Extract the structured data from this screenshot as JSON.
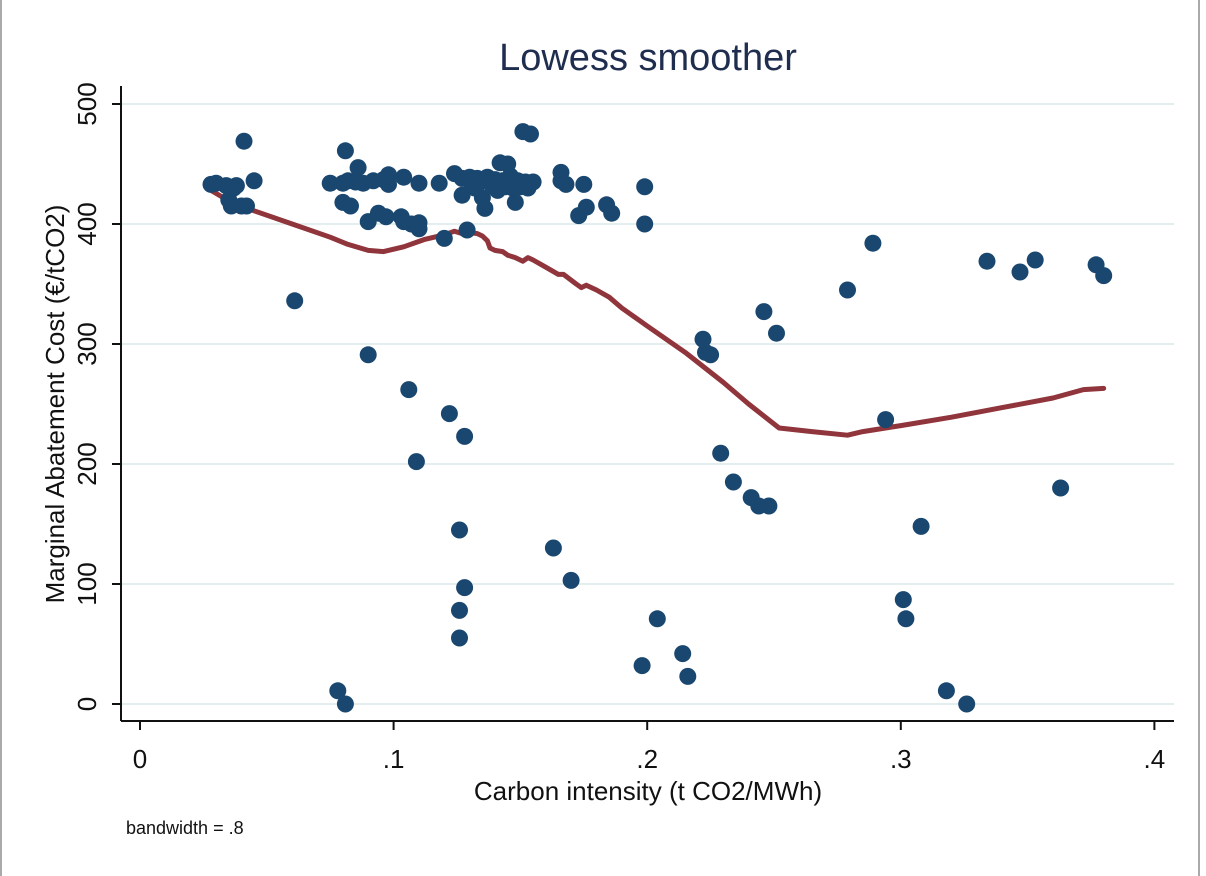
{
  "chart_data": {
    "type": "scatter",
    "title": "Lowess smoother",
    "xlabel": "Carbon intensity (t CO2/MWh)",
    "ylabel": "Marginal Abatement Cost (€/tCO2)",
    "note": "bandwidth = .8",
    "xlim": [
      -0.007,
      0.405
    ],
    "ylim": [
      -15,
      515
    ],
    "xticks": [
      0,
      0.1,
      0.2,
      0.3,
      0.4
    ],
    "xtick_labels": [
      "0",
      ".1",
      ".2",
      ".3",
      ".4"
    ],
    "yticks": [
      0,
      100,
      200,
      300,
      400,
      500
    ],
    "ytick_labels": [
      "0",
      "100",
      "200",
      "300",
      "400",
      "500"
    ],
    "grid": true,
    "colors": {
      "points": "#1a476f",
      "lowess": "#90353b",
      "title": "#1f2d4f",
      "grid": "#e4eeee"
    },
    "series": [
      {
        "name": "Marginal Abatement Cost",
        "kind": "scatter",
        "points": [
          [
            0.028,
            433
          ],
          [
            0.03,
            434
          ],
          [
            0.034,
            432
          ],
          [
            0.035,
            420
          ],
          [
            0.036,
            415
          ],
          [
            0.037,
            430
          ],
          [
            0.038,
            432
          ],
          [
            0.04,
            415
          ],
          [
            0.041,
            469
          ],
          [
            0.042,
            415
          ],
          [
            0.045,
            436
          ],
          [
            0.061,
            336
          ],
          [
            0.075,
            434
          ],
          [
            0.078,
            11
          ],
          [
            0.08,
            434
          ],
          [
            0.08,
            418
          ],
          [
            0.081,
            461
          ],
          [
            0.081,
            0
          ],
          [
            0.082,
            436
          ],
          [
            0.083,
            415
          ],
          [
            0.085,
            435
          ],
          [
            0.086,
            447
          ],
          [
            0.088,
            434
          ],
          [
            0.09,
            291
          ],
          [
            0.09,
            402
          ],
          [
            0.092,
            436
          ],
          [
            0.094,
            409
          ],
          [
            0.096,
            437
          ],
          [
            0.097,
            406
          ],
          [
            0.098,
            433
          ],
          [
            0.098,
            441
          ],
          [
            0.103,
            406
          ],
          [
            0.104,
            439
          ],
          [
            0.104,
            402
          ],
          [
            0.106,
            262
          ],
          [
            0.107,
            400
          ],
          [
            0.109,
            202
          ],
          [
            0.11,
            434
          ],
          [
            0.11,
            401
          ],
          [
            0.11,
            396
          ],
          [
            0.118,
            434
          ],
          [
            0.12,
            388
          ],
          [
            0.122,
            242
          ],
          [
            0.124,
            442
          ],
          [
            0.126,
            78
          ],
          [
            0.126,
            145
          ],
          [
            0.126,
            55
          ],
          [
            0.127,
            438
          ],
          [
            0.127,
            424
          ],
          [
            0.128,
            223
          ],
          [
            0.128,
            97
          ],
          [
            0.129,
            395
          ],
          [
            0.13,
            439
          ],
          [
            0.131,
            432
          ],
          [
            0.132,
            430
          ],
          [
            0.133,
            438
          ],
          [
            0.134,
            435
          ],
          [
            0.135,
            422
          ],
          [
            0.136,
            413
          ],
          [
            0.137,
            439
          ],
          [
            0.138,
            437
          ],
          [
            0.139,
            432
          ],
          [
            0.14,
            437
          ],
          [
            0.141,
            428
          ],
          [
            0.142,
            451
          ],
          [
            0.143,
            436
          ],
          [
            0.144,
            431
          ],
          [
            0.145,
            450
          ],
          [
            0.146,
            440
          ],
          [
            0.147,
            430
          ],
          [
            0.148,
            418
          ],
          [
            0.149,
            436
          ],
          [
            0.15,
            431
          ],
          [
            0.151,
            477
          ],
          [
            0.152,
            435
          ],
          [
            0.153,
            430
          ],
          [
            0.154,
            475
          ],
          [
            0.155,
            435
          ],
          [
            0.163,
            130
          ],
          [
            0.166,
            443
          ],
          [
            0.166,
            436
          ],
          [
            0.168,
            433
          ],
          [
            0.17,
            103
          ],
          [
            0.173,
            407
          ],
          [
            0.175,
            433
          ],
          [
            0.176,
            414
          ],
          [
            0.184,
            416
          ],
          [
            0.186,
            409
          ],
          [
            0.198,
            32
          ],
          [
            0.199,
            431
          ],
          [
            0.199,
            400
          ],
          [
            0.204,
            71
          ],
          [
            0.214,
            42
          ],
          [
            0.216,
            23
          ],
          [
            0.222,
            304
          ],
          [
            0.223,
            293
          ],
          [
            0.225,
            291
          ],
          [
            0.229,
            209
          ],
          [
            0.234,
            185
          ],
          [
            0.241,
            172
          ],
          [
            0.244,
            165
          ],
          [
            0.246,
            327
          ],
          [
            0.248,
            165
          ],
          [
            0.251,
            309
          ],
          [
            0.279,
            345
          ],
          [
            0.289,
            384
          ],
          [
            0.294,
            237
          ],
          [
            0.301,
            87
          ],
          [
            0.302,
            71
          ],
          [
            0.308,
            148
          ],
          [
            0.318,
            11
          ],
          [
            0.326,
            0
          ],
          [
            0.334,
            369
          ],
          [
            0.347,
            360
          ],
          [
            0.353,
            370
          ],
          [
            0.363,
            180
          ],
          [
            0.377,
            366
          ],
          [
            0.38,
            357
          ]
        ]
      },
      {
        "name": "Lowess smoother",
        "kind": "line",
        "points": [
          [
            0.028,
            428
          ],
          [
            0.036,
            418
          ],
          [
            0.045,
            411
          ],
          [
            0.06,
            400
          ],
          [
            0.075,
            389
          ],
          [
            0.082,
            383
          ],
          [
            0.09,
            378
          ],
          [
            0.096,
            377
          ],
          [
            0.104,
            381
          ],
          [
            0.112,
            387
          ],
          [
            0.12,
            391
          ],
          [
            0.124,
            394
          ],
          [
            0.127,
            392
          ],
          [
            0.13,
            393
          ],
          [
            0.133,
            392
          ],
          [
            0.135,
            390
          ],
          [
            0.137,
            386
          ],
          [
            0.138,
            380
          ],
          [
            0.14,
            378
          ],
          [
            0.143,
            377
          ],
          [
            0.145,
            374
          ],
          [
            0.148,
            372
          ],
          [
            0.151,
            369
          ],
          [
            0.153,
            372
          ],
          [
            0.155,
            370
          ],
          [
            0.16,
            364
          ],
          [
            0.165,
            358
          ],
          [
            0.167,
            358
          ],
          [
            0.172,
            350
          ],
          [
            0.174,
            347
          ],
          [
            0.176,
            349
          ],
          [
            0.18,
            345
          ],
          [
            0.185,
            339
          ],
          [
            0.19,
            330
          ],
          [
            0.2,
            315
          ],
          [
            0.215,
            293
          ],
          [
            0.23,
            268
          ],
          [
            0.24,
            250
          ],
          [
            0.252,
            230
          ],
          [
            0.265,
            227
          ],
          [
            0.279,
            224
          ],
          [
            0.285,
            227
          ],
          [
            0.3,
            232
          ],
          [
            0.32,
            239
          ],
          [
            0.34,
            247
          ],
          [
            0.36,
            255
          ],
          [
            0.372,
            262
          ],
          [
            0.38,
            263
          ]
        ]
      }
    ]
  }
}
